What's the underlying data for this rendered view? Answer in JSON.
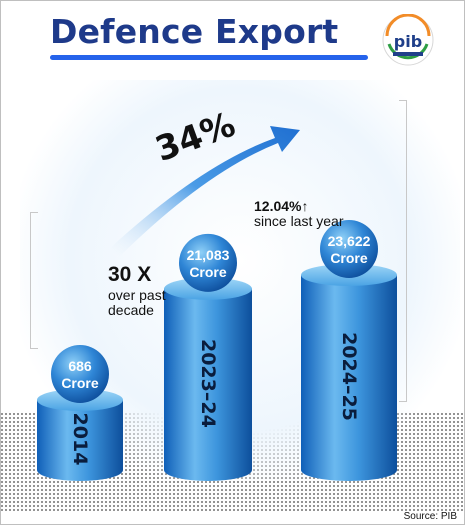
{
  "header": {
    "title": "Defence Export",
    "logo_text": "pib"
  },
  "annotations": {
    "growth_percent": "34%",
    "yoy_change": "12.04%",
    "yoy_arrow": "↑",
    "yoy_note": "since last year",
    "multiple": "30 X",
    "multiple_note": "over past decade"
  },
  "footer": {
    "source": "Source: PIB"
  },
  "colors": {
    "title": "#1e3a8a",
    "cylinder_light": "#7cc4f2",
    "cylinder_dark": "#0f5fb8",
    "arrow": "#1f6fd1"
  },
  "chart_data": {
    "type": "bar",
    "categories": [
      "2014",
      "2023–24",
      "2024–25"
    ],
    "values": [
      686,
      21083,
      23622
    ],
    "value_labels": [
      "686 Crore",
      "21,083 Crore",
      "23,622 Crore"
    ],
    "unit": "Crore",
    "title": "Defence Export"
  }
}
